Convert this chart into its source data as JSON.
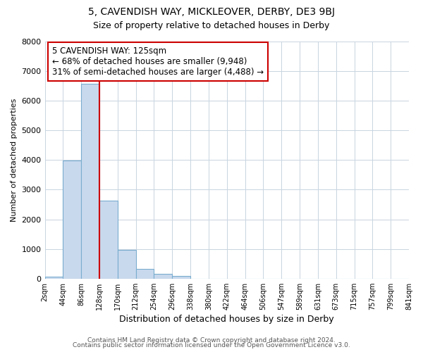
{
  "title": "5, CAVENDISH WAY, MICKLEOVER, DERBY, DE3 9BJ",
  "subtitle": "Size of property relative to detached houses in Derby",
  "xlabel": "Distribution of detached houses by size in Derby",
  "ylabel": "Number of detached properties",
  "bar_color": "#c9d9ed",
  "bar_edge_color": "#7aadcf",
  "bin_labels": [
    "2sqm",
    "44sqm",
    "86sqm",
    "128sqm",
    "170sqm",
    "212sqm",
    "254sqm",
    "296sqm",
    "338sqm",
    "380sqm",
    "422sqm",
    "464sqm",
    "506sqm",
    "547sqm",
    "589sqm",
    "631sqm",
    "673sqm",
    "715sqm",
    "757sqm",
    "799sqm",
    "841sqm"
  ],
  "bar_heights": [
    60,
    3980,
    6580,
    2620,
    960,
    320,
    165,
    80,
    0,
    0,
    0,
    0,
    0,
    0,
    0,
    0,
    0,
    0,
    0,
    0
  ],
  "ylim": [
    0,
    8000
  ],
  "yticks": [
    0,
    1000,
    2000,
    3000,
    4000,
    5000,
    6000,
    7000,
    8000
  ],
  "vline_x_index": 3,
  "vline_color": "#cc0000",
  "annotation_title": "5 CAVENDISH WAY: 125sqm",
  "annotation_line1": "← 68% of detached houses are smaller (9,948)",
  "annotation_line2": "31% of semi-detached houses are larger (4,488) →",
  "annotation_box_color": "#ffffff",
  "annotation_box_edge": "#cc0000",
  "grid_color": "#c8d4e0",
  "background_color": "#ffffff",
  "plot_bg_color": "#ffffff",
  "footer1": "Contains HM Land Registry data © Crown copyright and database right 2024.",
  "footer2": "Contains public sector information licensed under the Open Government Licence v3.0."
}
